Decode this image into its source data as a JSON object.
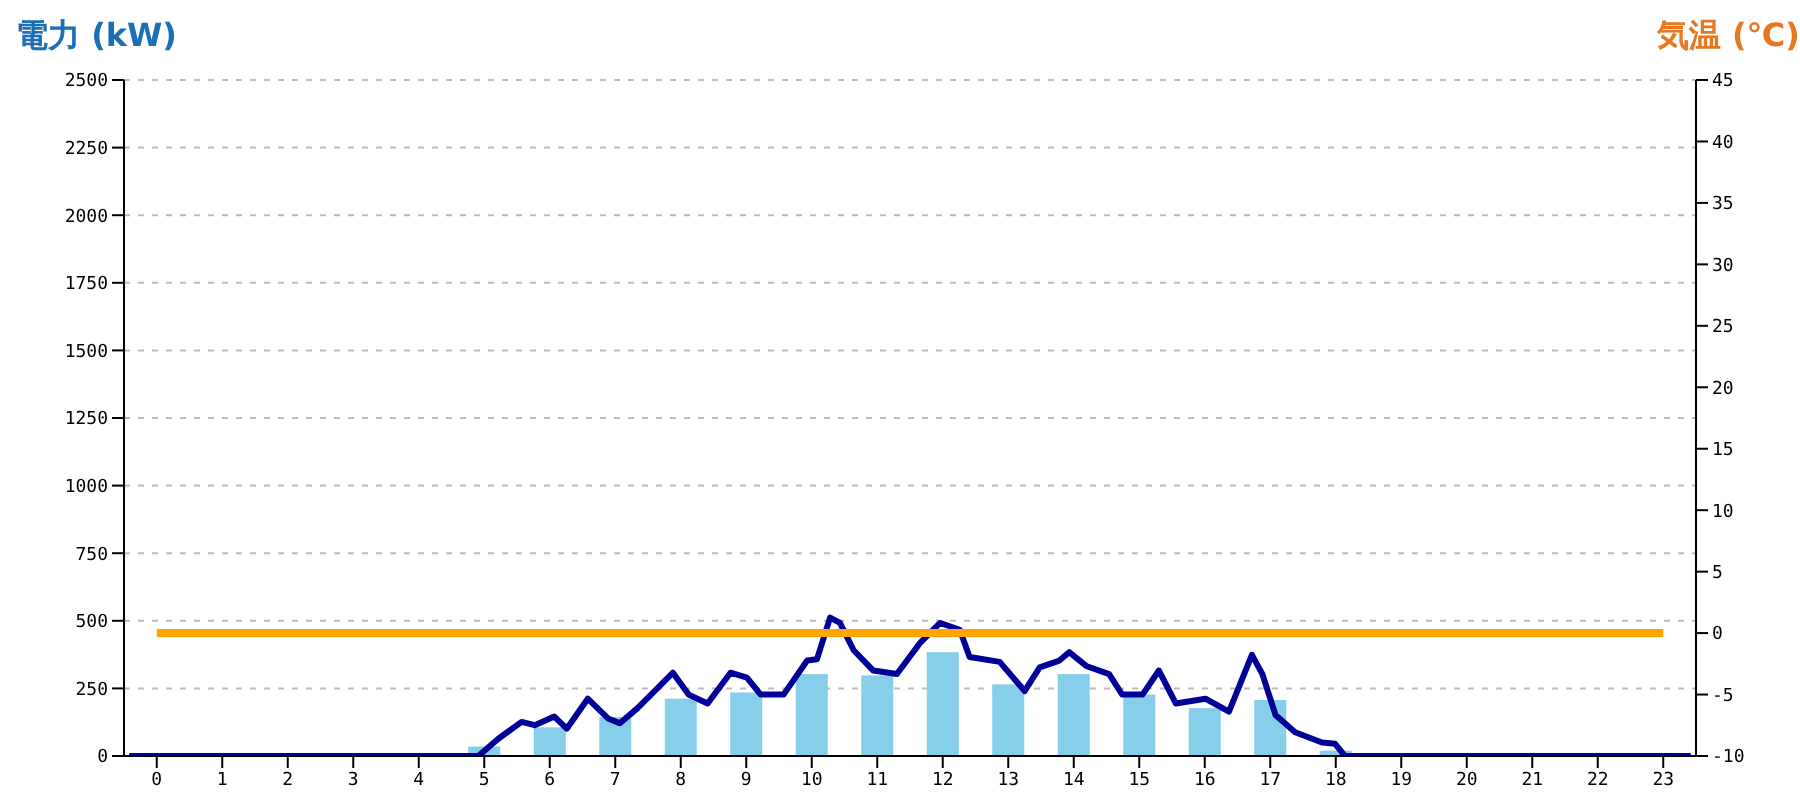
{
  "chart_data": {
    "type": "bar",
    "ylabel": "電力 (kW)",
    "y2label": "気温 (℃)",
    "x": [
      0,
      1,
      2,
      3,
      4,
      5,
      6,
      7,
      8,
      9,
      10,
      11,
      12,
      13,
      14,
      15,
      16,
      17,
      18,
      19,
      20,
      21,
      22,
      23
    ],
    "xlim": [
      -0.5,
      23.5
    ],
    "xticks": [
      0,
      1,
      2,
      3,
      4,
      5,
      6,
      7,
      8,
      9,
      10,
      11,
      12,
      13,
      14,
      15,
      16,
      17,
      18,
      19,
      20,
      21,
      22,
      23
    ],
    "series": [
      {
        "color": "#87ceeb",
        "values": [
          0,
          0,
          0,
          0,
          0,
          35,
          106,
          144,
          212,
          235,
          303,
          298,
          384,
          265,
          303,
          227,
          177,
          207,
          20,
          0,
          0,
          0,
          0,
          0
        ]
      },
      {
        "type": "line",
        "color": "#000099",
        "x": [
          -0.42,
          4.91,
          5.21,
          5.57,
          5.77,
          6.07,
          6.26,
          6.58,
          6.89,
          7.07,
          7.34,
          7.6,
          7.88,
          8.12,
          8.41,
          8.76,
          9.01,
          9.22,
          9.57,
          9.93,
          10.08,
          10.28,
          10.43,
          10.64,
          10.94,
          11.3,
          11.65,
          11.96,
          12.26,
          12.41,
          12.87,
          13.25,
          13.48,
          13.78,
          13.93,
          14.19,
          14.54,
          14.74,
          15.05,
          15.3,
          15.56,
          16.01,
          16.37,
          16.72,
          16.88,
          17.08,
          17.38,
          17.79,
          17.99,
          18.14,
          23.42
        ],
        "values": [
          0,
          0,
          63,
          126,
          114,
          146,
          101,
          212,
          139,
          121,
          177,
          240,
          308,
          227,
          194,
          308,
          290,
          227,
          227,
          353,
          358,
          512,
          492,
          391,
          316,
          303,
          417,
          492,
          467,
          366,
          348,
          240,
          328,
          353,
          384,
          333,
          303,
          227,
          227,
          316,
          194,
          212,
          164,
          374,
          303,
          152,
          88,
          50,
          45,
          0,
          0
        ]
      },
      {
        "type": "line",
        "axis": "y2",
        "color": "#ffa500",
        "values": [
          0,
          0,
          0,
          0,
          0,
          0,
          0,
          0,
          0,
          0,
          0,
          0,
          0,
          0,
          0,
          0,
          0,
          0,
          0,
          0,
          0,
          0,
          0,
          0
        ]
      }
    ],
    "ylim": [
      0,
      2500
    ],
    "yticks": [
      0,
      250,
      500,
      750,
      1000,
      1250,
      1500,
      1750,
      2000,
      2250,
      2500
    ],
    "y2lim": [
      -10,
      45
    ],
    "y2ticks": [
      -10,
      -5,
      0,
      5,
      10,
      15,
      20,
      25,
      30,
      35,
      40,
      45
    ],
    "grid": "y",
    "marker": "none",
    "legend": false
  }
}
